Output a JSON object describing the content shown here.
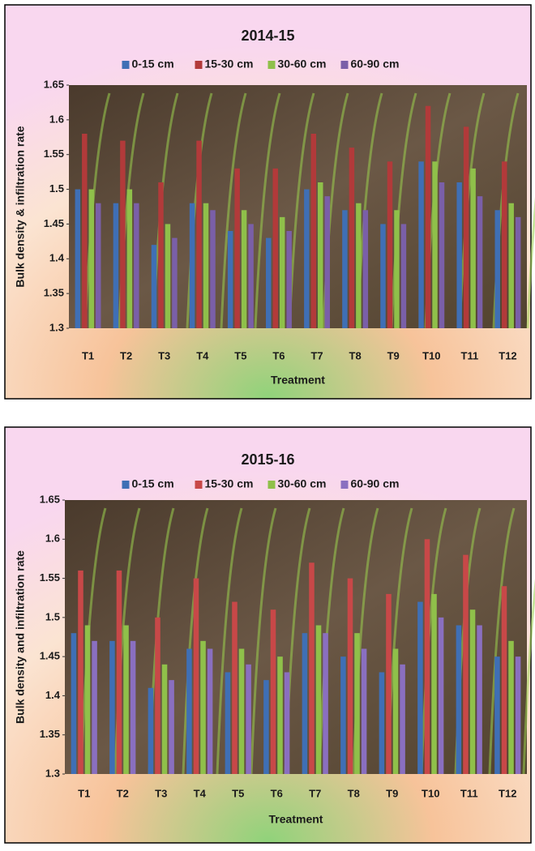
{
  "chart_data": [
    {
      "type": "bar",
      "title": "2014-15",
      "x_label": "Treatment",
      "y_label": "Bulk density & infiltration rate",
      "categories": [
        "T1",
        "T2",
        "T3",
        "T4",
        "T5",
        "T6",
        "T7",
        "T8",
        "T9",
        "T10",
        "T11",
        "T12"
      ],
      "series": [
        {
          "name": "0-15 cm",
          "color": "#3f6fb5",
          "values": [
            1.5,
            1.48,
            1.42,
            1.48,
            1.44,
            1.43,
            1.5,
            1.47,
            1.45,
            1.54,
            1.51,
            1.47
          ]
        },
        {
          "name": "15-30 cm",
          "color": "#b23a3a",
          "values": [
            1.58,
            1.57,
            1.51,
            1.57,
            1.53,
            1.53,
            1.58,
            1.56,
            1.54,
            1.62,
            1.59,
            1.54
          ]
        },
        {
          "name": "30-60 cm",
          "color": "#8fc04a",
          "values": [
            1.5,
            1.5,
            1.45,
            1.48,
            1.47,
            1.46,
            1.51,
            1.48,
            1.47,
            1.54,
            1.53,
            1.48
          ]
        },
        {
          "name": "60-90 cm",
          "color": "#7a5fa8",
          "values": [
            1.48,
            1.48,
            1.43,
            1.47,
            1.45,
            1.44,
            1.49,
            1.47,
            1.45,
            1.51,
            1.49,
            1.46
          ]
        }
      ],
      "ylim": [
        1.3,
        1.65
      ],
      "yticks": [
        1.3,
        1.35,
        1.4,
        1.45,
        1.5,
        1.55,
        1.6,
        1.65
      ]
    },
    {
      "type": "bar",
      "title": "2015-16",
      "x_label": "Treatment",
      "y_label": "Bulk density and infiltration rate",
      "categories": [
        "T1",
        "T2",
        "T3",
        "T4",
        "T5",
        "T6",
        "T7",
        "T8",
        "T9",
        "T10",
        "T11",
        "T12"
      ],
      "series": [
        {
          "name": "0-15 cm",
          "color": "#3f6fb5",
          "values": [
            1.48,
            1.47,
            1.41,
            1.46,
            1.43,
            1.42,
            1.48,
            1.45,
            1.43,
            1.52,
            1.49,
            1.45
          ]
        },
        {
          "name": "15-30 cm",
          "color": "#c84848",
          "values": [
            1.56,
            1.56,
            1.5,
            1.55,
            1.52,
            1.51,
            1.57,
            1.55,
            1.53,
            1.6,
            1.58,
            1.54
          ]
        },
        {
          "name": "30-60 cm",
          "color": "#8fc04a",
          "values": [
            1.49,
            1.49,
            1.44,
            1.47,
            1.46,
            1.45,
            1.49,
            1.48,
            1.46,
            1.53,
            1.51,
            1.47
          ]
        },
        {
          "name": "60-90 cm",
          "color": "#8a6fc0",
          "values": [
            1.47,
            1.47,
            1.42,
            1.46,
            1.44,
            1.43,
            1.48,
            1.46,
            1.44,
            1.5,
            1.49,
            1.45
          ]
        }
      ],
      "ylim": [
        1.3,
        1.65
      ],
      "yticks": [
        1.3,
        1.35,
        1.4,
        1.45,
        1.5,
        1.55,
        1.6,
        1.65
      ]
    }
  ]
}
